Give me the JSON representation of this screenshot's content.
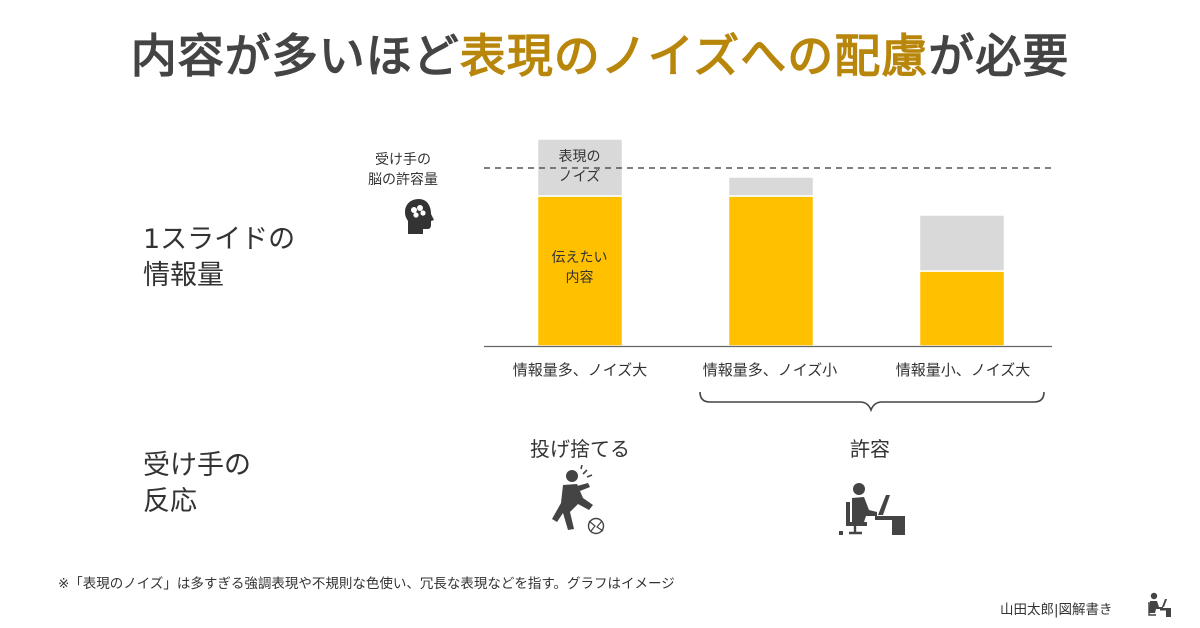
{
  "title": {
    "part1": "内容が多いほど",
    "highlight": "表現のノイズへの配慮",
    "part2": "が必要"
  },
  "row_labels": {
    "info_line1": "1スライドの",
    "info_line2": "情報量",
    "reaction_line1": "受け手の",
    "reaction_line2": "反応"
  },
  "capacity_label": {
    "line1": "受け手の",
    "line2": "脳の許容量"
  },
  "bar_annotations": {
    "noise_line1": "表現の",
    "noise_line2": "ノイズ",
    "content_line1": "伝えたい",
    "content_line2": "内容"
  },
  "reactions": {
    "reject": "投げ捨てる",
    "accept": "許容"
  },
  "footnote": "※「表現のノイズ」は多すぎる強調表現や不規則な色使い、冗長な表現などを指す。グラフはイメージ",
  "credit": "山田太郎|図解書き",
  "colors": {
    "content": "#FFC000",
    "noise": "#D9D9D9",
    "accent": "#B8860B"
  },
  "icons": [
    "brain-head-icon",
    "throwing-person-icon",
    "desk-worker-icon",
    "author-desk-icon"
  ],
  "chart_data": {
    "type": "bar",
    "stacked": true,
    "categories": [
      "情報量多、ノイズ大",
      "情報量多、ノイズ小",
      "情報量小、ノイズ大"
    ],
    "series": [
      {
        "name": "伝えたい内容",
        "values": [
          150,
          150,
          75
        ]
      },
      {
        "name": "表現のノイズ",
        "values": [
          57,
          19,
          56
        ]
      }
    ],
    "reference_line": {
      "label": "受け手の脳の許容量",
      "value": 178
    },
    "ylim": [
      0,
      210
    ],
    "xlabel": "",
    "ylabel": "1スライドの情報量"
  }
}
